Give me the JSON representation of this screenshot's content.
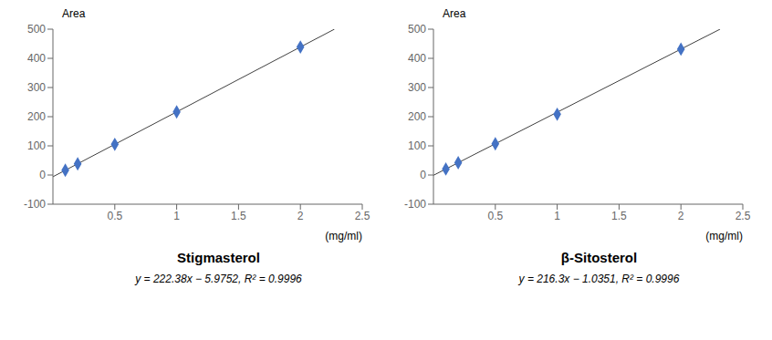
{
  "chart_data": [
    {
      "type": "scatter",
      "title": "Stigmasterol",
      "annotations": [
        "y = 222.38x − 5.9752, R² = 0.9996"
      ],
      "xlabel": "(mg/ml)",
      "ylabel": "Area",
      "xlim": [
        0,
        2.5
      ],
      "ylim": [
        -100,
        500
      ],
      "xticks": [
        0.5,
        1.0,
        1.5,
        2.0,
        2.5
      ],
      "yticks": [
        -100,
        0,
        100,
        200,
        300,
        400,
        500
      ],
      "series": [
        {
          "type": "line",
          "color": "#404040",
          "line_style": "solid",
          "x": [
            0,
            2.275273
          ],
          "values": [
            -5.9752,
            500
          ]
        },
        {
          "type": "scatter",
          "color": "#4472C4",
          "marker": "diamond",
          "x": [
            0.1,
            0.2,
            0.5,
            1.0,
            2.0
          ],
          "values": [
            16.3,
            38.5,
            105.2,
            216.4,
            438.8
          ]
        }
      ]
    },
    {
      "type": "scatter",
      "title": "β-Sitosterol",
      "annotations": [
        "y = 216.3x − 1.0351, R² = 0.9996"
      ],
      "xlabel": "(mg/ml)",
      "ylabel": "Area",
      "xlim": [
        0,
        2.5
      ],
      "ylim": [
        -100,
        500
      ],
      "xticks": [
        0.5,
        1.0,
        1.5,
        2.0,
        2.5
      ],
      "yticks": [
        -100,
        0,
        100,
        200,
        300,
        400,
        500
      ],
      "series": [
        {
          "type": "line",
          "color": "#404040",
          "line_style": "solid",
          "x": [
            0,
            2.31639
          ],
          "values": [
            -1.0351,
            500
          ]
        },
        {
          "type": "scatter",
          "color": "#4472C4",
          "marker": "diamond",
          "x": [
            0.1,
            0.2,
            0.5,
            1.0,
            2.0
          ],
          "values": [
            20.6,
            42.2,
            107.1,
            208.3,
            431.6
          ]
        }
      ]
    }
  ]
}
